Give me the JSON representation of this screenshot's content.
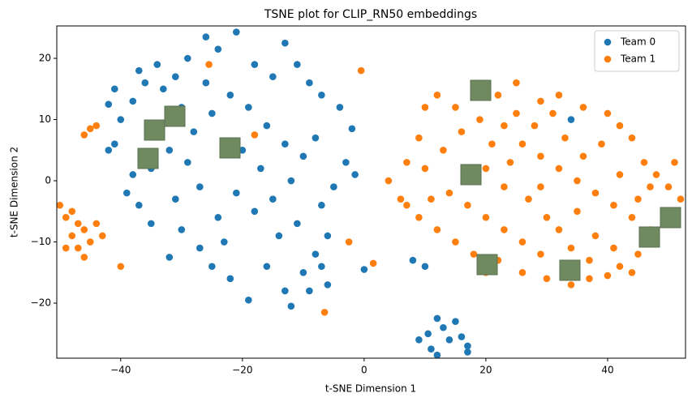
{
  "chart_data": {
    "type": "scatter",
    "title": "TSNE plot for CLIP_RN50 embeddings",
    "x_label": "t-SNE Dimension 1",
    "y_label": "t-SNE Dimension 2",
    "xlim": [
      -50.5,
      52.8
    ],
    "ylim": [
      -29,
      25.3
    ],
    "xticks": [
      {
        "value": -40,
        "label": "−40"
      },
      {
        "value": -20,
        "label": "−20"
      },
      0,
      20,
      40
    ],
    "yticks": [
      {
        "value": -20,
        "label": "−20"
      },
      {
        "value": -10,
        "label": "−10"
      },
      0,
      10,
      20
    ],
    "legend": "upper right",
    "series": [
      {
        "name": "Team 0",
        "color": "#1f77b4",
        "x": [
          -42,
          -41,
          -40,
          -38,
          -37,
          -36,
          -34,
          -33,
          -31,
          -29,
          -26,
          -24,
          -21,
          -18,
          -15,
          -13,
          -11,
          -9,
          -7,
          -4,
          -2,
          -3,
          -1.5,
          -5,
          -7,
          -6,
          -8,
          -6,
          -10,
          -13,
          -16,
          -19,
          -22,
          -25,
          -27,
          -30,
          -32,
          -35,
          -37,
          -39,
          -41,
          -42,
          -38,
          -35,
          -32,
          -28,
          -25,
          -22,
          -19,
          -16,
          -13,
          -10,
          -8,
          -12,
          -15,
          -18,
          -21,
          -24,
          -27,
          -29,
          -31,
          -20,
          -17,
          -14,
          -11,
          -23,
          -26,
          -30,
          -34,
          -12,
          -9,
          -7,
          8,
          10,
          10.5,
          12,
          13,
          14,
          15,
          16,
          17,
          11,
          12,
          9,
          17,
          34,
          0
        ],
        "values": [
          12.5,
          15,
          10,
          13,
          18,
          16,
          19,
          15,
          17,
          20,
          23.5,
          21.5,
          24.3,
          19,
          17,
          22.5,
          19,
          16,
          14,
          12,
          8.5,
          3,
          1,
          -1,
          -4,
          -9,
          -12,
          -17,
          -15,
          -18,
          -14,
          -19.5,
          -16,
          -14,
          -11,
          -8,
          -12.5,
          -7,
          -4,
          -2,
          6,
          5,
          1,
          2,
          5,
          8,
          11,
          14,
          12,
          9,
          6,
          4,
          7,
          0,
          -3,
          -5,
          -2,
          -6,
          -1,
          3,
          -3,
          5,
          2,
          -9,
          -7,
          -10,
          16,
          12,
          9,
          -20.5,
          -18,
          -14,
          -13,
          -14,
          -25,
          -22.5,
          -24,
          -26,
          -23,
          -25.5,
          -27,
          -27.5,
          -28.5,
          -26,
          -28,
          10,
          -14.5
        ]
      },
      {
        "name": "Team 1",
        "color": "#ff7f0e",
        "x": [
          -50,
          -49,
          -48,
          -47,
          -46,
          -45,
          -44,
          -43,
          -47,
          -49,
          -46,
          -48,
          -25.5,
          -18,
          -0.5,
          -6.5,
          -40,
          -2.5,
          1.5,
          -45,
          -44,
          -46,
          4,
          6,
          7,
          9,
          10,
          12,
          15,
          18,
          22,
          25,
          29,
          32,
          36,
          40,
          42,
          44,
          46,
          48,
          50,
          52,
          50,
          48,
          45,
          42,
          40,
          37,
          34,
          30,
          26,
          22,
          20,
          18,
          15,
          12,
          9,
          7,
          10,
          13,
          16,
          19,
          23,
          26,
          29,
          32,
          35,
          38,
          41,
          44,
          47,
          14,
          17,
          20,
          23,
          26,
          29,
          32,
          35,
          38,
          41,
          20,
          23,
          27,
          30,
          33,
          36,
          39,
          42,
          45,
          21,
          25,
          28,
          31,
          17,
          24,
          29,
          34,
          37,
          44,
          47,
          51,
          11
        ],
        "values": [
          -4,
          -6,
          -9,
          -11,
          -12.5,
          -10,
          -7,
          -9,
          -7,
          -11,
          -8,
          -5,
          19,
          7.5,
          18,
          -21.5,
          -14,
          -10,
          -13.5,
          8.5,
          9,
          7.5,
          0,
          -3,
          3,
          7,
          12,
          14,
          12,
          15.5,
          14,
          16,
          13,
          14,
          12,
          11,
          9,
          7,
          3,
          1,
          -1,
          -3,
          -7,
          -10,
          -12,
          -14,
          -15.5,
          -16,
          -17,
          -16,
          -15,
          -13,
          -15,
          -12,
          -10,
          -8,
          -6,
          -4,
          2,
          5,
          8,
          10,
          9,
          6,
          4,
          2,
          0,
          -2,
          -4,
          -6,
          -8,
          -2,
          -4,
          -6,
          -8,
          -10,
          -12,
          -8,
          -5,
          -9,
          -11,
          2,
          -1,
          -3,
          -6,
          7,
          4,
          6,
          1,
          -3,
          6,
          11,
          9,
          11,
          1,
          3,
          -1,
          -11,
          -13,
          -15,
          -1,
          3,
          -3
        ]
      }
    ]
  }
}
